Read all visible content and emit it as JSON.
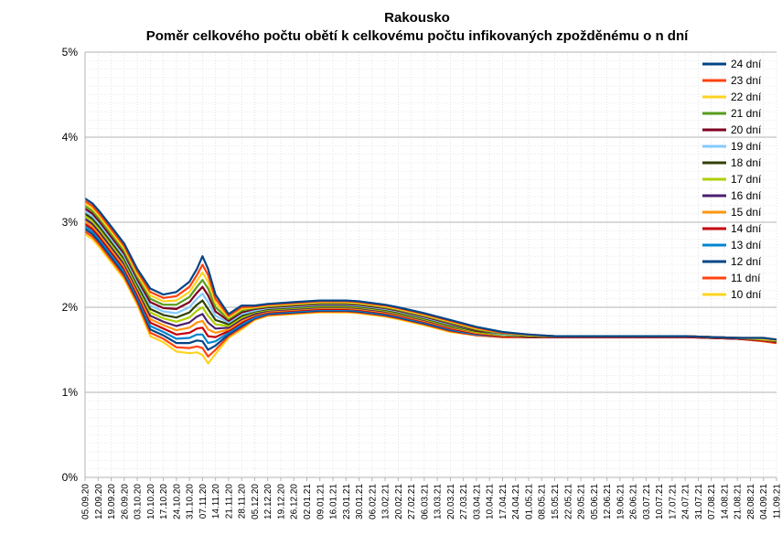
{
  "chart_data": {
    "type": "line",
    "title": "Rakousko",
    "subtitle": "Poměr celkového počtu obětí k celkovému počtu infikovaných zpožděnému o n dní",
    "xlabel": "",
    "ylabel": "",
    "ylim": [
      0,
      5
    ],
    "y_ticks": [
      "0%",
      "1%",
      "2%",
      "3%",
      "4%",
      "5%"
    ],
    "x_tick_labels": [
      "05.09.20",
      "12.09.20",
      "19.09.20",
      "26.09.20",
      "03.10.20",
      "10.10.20",
      "17.10.20",
      "24.10.20",
      "31.10.20",
      "07.11.20",
      "14.11.20",
      "21.11.20",
      "28.11.20",
      "05.12.20",
      "12.12.20",
      "19.12.20",
      "26.12.20",
      "02.01.21",
      "09.01.21",
      "16.01.21",
      "23.01.21",
      "30.01.21",
      "06.02.21",
      "13.02.21",
      "20.02.21",
      "27.02.21",
      "06.03.21",
      "13.03.21",
      "20.03.21",
      "27.03.21",
      "03.04.21",
      "10.04.21",
      "17.04.21",
      "24.04.21",
      "01.05.21",
      "08.05.21",
      "15.05.21",
      "22.05.21",
      "29.05.21",
      "05.06.21",
      "12.06.21",
      "19.06.21",
      "26.06.21",
      "03.07.21",
      "10.07.21",
      "17.07.21",
      "24.07.21",
      "31.07.21",
      "07.08.21",
      "14.08.21",
      "21.08.21",
      "28.08.21",
      "04.09.21",
      "11.09.21"
    ],
    "grid": true,
    "legend_position": "top-right",
    "x_day_index": [
      0,
      4,
      8,
      14,
      21,
      28,
      35,
      42,
      49,
      56,
      60,
      63,
      66,
      70,
      77,
      84,
      91,
      98,
      112,
      126,
      140,
      147,
      154,
      161,
      168,
      182,
      196,
      210,
      224,
      238,
      252,
      266,
      280,
      294,
      308,
      322,
      336,
      350,
      364,
      371
    ],
    "series": [
      {
        "name": "24 dní",
        "color": "#004586",
        "values": [
          3.28,
          3.22,
          3.12,
          2.95,
          2.75,
          2.45,
          2.22,
          2.15,
          2.18,
          2.3,
          2.45,
          2.6,
          2.45,
          2.15,
          1.92,
          2.02,
          2.02,
          2.04,
          2.06,
          2.08,
          2.08,
          2.07,
          2.05,
          2.03,
          2.0,
          1.93,
          1.85,
          1.77,
          1.71,
          1.68,
          1.66,
          1.66,
          1.66,
          1.66,
          1.66,
          1.66,
          1.65,
          1.64,
          1.64,
          1.62
        ]
      },
      {
        "name": "23 dní",
        "color": "#ff420e",
        "values": [
          3.25,
          3.19,
          3.09,
          2.92,
          2.72,
          2.42,
          2.18,
          2.11,
          2.13,
          2.24,
          2.38,
          2.5,
          2.38,
          2.1,
          1.9,
          2.0,
          2.01,
          2.03,
          2.05,
          2.07,
          2.07,
          2.06,
          2.04,
          2.02,
          1.99,
          1.92,
          1.84,
          1.76,
          1.7,
          1.68,
          1.66,
          1.66,
          1.66,
          1.66,
          1.66,
          1.66,
          1.65,
          1.64,
          1.64,
          1.62
        ]
      },
      {
        "name": "22 dní",
        "color": "#ffd320",
        "values": [
          3.22,
          3.16,
          3.06,
          2.89,
          2.69,
          2.39,
          2.14,
          2.07,
          2.08,
          2.18,
          2.31,
          2.41,
          2.3,
          2.05,
          1.88,
          1.98,
          2.0,
          2.02,
          2.04,
          2.06,
          2.06,
          2.05,
          2.03,
          2.01,
          1.98,
          1.91,
          1.83,
          1.75,
          1.7,
          1.67,
          1.66,
          1.66,
          1.66,
          1.66,
          1.66,
          1.66,
          1.65,
          1.64,
          1.63,
          1.61
        ]
      },
      {
        "name": "21 dní",
        "color": "#579d1c",
        "values": [
          3.19,
          3.13,
          3.03,
          2.86,
          2.66,
          2.36,
          2.1,
          2.03,
          2.03,
          2.12,
          2.24,
          2.32,
          2.22,
          2.0,
          1.86,
          1.96,
          1.99,
          2.01,
          2.03,
          2.05,
          2.05,
          2.04,
          2.02,
          2.0,
          1.97,
          1.9,
          1.82,
          1.74,
          1.69,
          1.67,
          1.66,
          1.66,
          1.66,
          1.66,
          1.66,
          1.66,
          1.65,
          1.64,
          1.63,
          1.61
        ]
      },
      {
        "name": "20 dní",
        "color": "#7e0021",
        "values": [
          3.16,
          3.1,
          3.0,
          2.83,
          2.63,
          2.33,
          2.06,
          1.99,
          1.98,
          2.06,
          2.17,
          2.24,
          2.14,
          1.95,
          1.84,
          1.94,
          1.98,
          2.0,
          2.02,
          2.04,
          2.04,
          2.03,
          2.01,
          1.99,
          1.96,
          1.89,
          1.81,
          1.73,
          1.69,
          1.67,
          1.66,
          1.66,
          1.66,
          1.66,
          1.66,
          1.66,
          1.65,
          1.64,
          1.63,
          1.61
        ]
      },
      {
        "name": "19 dní",
        "color": "#83caff",
        "values": [
          3.13,
          3.07,
          2.97,
          2.8,
          2.6,
          2.3,
          2.02,
          1.95,
          1.93,
          2.0,
          2.1,
          2.16,
          2.06,
          1.9,
          1.82,
          1.92,
          1.96,
          1.99,
          2.01,
          2.03,
          2.03,
          2.02,
          2.0,
          1.98,
          1.95,
          1.88,
          1.8,
          1.73,
          1.68,
          1.67,
          1.66,
          1.66,
          1.66,
          1.66,
          1.66,
          1.66,
          1.65,
          1.64,
          1.63,
          1.61
        ]
      },
      {
        "name": "18 dní",
        "color": "#314004",
        "values": [
          3.1,
          3.04,
          2.94,
          2.77,
          2.57,
          2.27,
          1.98,
          1.91,
          1.88,
          1.94,
          2.03,
          2.08,
          1.98,
          1.85,
          1.8,
          1.9,
          1.95,
          1.98,
          2.0,
          2.02,
          2.02,
          2.01,
          1.99,
          1.97,
          1.94,
          1.87,
          1.79,
          1.72,
          1.68,
          1.66,
          1.66,
          1.66,
          1.66,
          1.66,
          1.66,
          1.66,
          1.65,
          1.64,
          1.63,
          1.6
        ]
      },
      {
        "name": "17 dní",
        "color": "#aecf00",
        "values": [
          3.07,
          3.01,
          2.91,
          2.74,
          2.54,
          2.24,
          1.94,
          1.87,
          1.83,
          1.88,
          1.96,
          2.0,
          1.9,
          1.8,
          1.78,
          1.88,
          1.94,
          1.97,
          1.99,
          2.01,
          2.01,
          2.0,
          1.98,
          1.96,
          1.93,
          1.86,
          1.78,
          1.71,
          1.67,
          1.66,
          1.66,
          1.66,
          1.66,
          1.66,
          1.66,
          1.66,
          1.65,
          1.64,
          1.62,
          1.6
        ]
      },
      {
        "name": "16 dní",
        "color": "#4b1f6f",
        "values": [
          3.04,
          2.98,
          2.88,
          2.71,
          2.51,
          2.21,
          1.9,
          1.83,
          1.78,
          1.82,
          1.89,
          1.92,
          1.82,
          1.75,
          1.76,
          1.86,
          1.92,
          1.96,
          1.98,
          2.0,
          2.0,
          1.99,
          1.97,
          1.95,
          1.92,
          1.85,
          1.77,
          1.71,
          1.67,
          1.66,
          1.66,
          1.66,
          1.66,
          1.66,
          1.66,
          1.66,
          1.65,
          1.64,
          1.62,
          1.6
        ]
      },
      {
        "name": "15 dní",
        "color": "#ff950e",
        "values": [
          3.01,
          2.95,
          2.85,
          2.68,
          2.48,
          2.18,
          1.86,
          1.79,
          1.73,
          1.76,
          1.82,
          1.84,
          1.74,
          1.7,
          1.74,
          1.84,
          1.91,
          1.95,
          1.97,
          1.99,
          1.99,
          1.98,
          1.96,
          1.94,
          1.91,
          1.84,
          1.76,
          1.7,
          1.67,
          1.66,
          1.66,
          1.66,
          1.66,
          1.66,
          1.66,
          1.66,
          1.65,
          1.64,
          1.62,
          1.6
        ]
      },
      {
        "name": "14 dní",
        "color": "#c5000b",
        "values": [
          2.98,
          2.92,
          2.82,
          2.65,
          2.45,
          2.15,
          1.82,
          1.75,
          1.68,
          1.7,
          1.75,
          1.76,
          1.66,
          1.65,
          1.72,
          1.82,
          1.9,
          1.94,
          1.96,
          1.98,
          1.98,
          1.97,
          1.95,
          1.93,
          1.9,
          1.83,
          1.75,
          1.69,
          1.66,
          1.65,
          1.65,
          1.65,
          1.65,
          1.65,
          1.65,
          1.65,
          1.64,
          1.63,
          1.61,
          1.59
        ]
      },
      {
        "name": "13 dní",
        "color": "#0084d1",
        "values": [
          2.95,
          2.89,
          2.79,
          2.62,
          2.42,
          2.12,
          1.78,
          1.71,
          1.63,
          1.64,
          1.68,
          1.68,
          1.58,
          1.6,
          1.7,
          1.8,
          1.88,
          1.93,
          1.95,
          1.97,
          1.97,
          1.96,
          1.94,
          1.92,
          1.89,
          1.82,
          1.74,
          1.68,
          1.66,
          1.65,
          1.65,
          1.65,
          1.65,
          1.65,
          1.65,
          1.65,
          1.64,
          1.63,
          1.61,
          1.59
        ]
      },
      {
        "name": "12 dní",
        "color": "#004586",
        "values": [
          2.92,
          2.86,
          2.76,
          2.59,
          2.39,
          2.09,
          1.74,
          1.67,
          1.58,
          1.58,
          1.61,
          1.6,
          1.5,
          1.55,
          1.68,
          1.78,
          1.87,
          1.92,
          1.94,
          1.96,
          1.96,
          1.95,
          1.93,
          1.91,
          1.88,
          1.81,
          1.73,
          1.68,
          1.66,
          1.65,
          1.65,
          1.65,
          1.65,
          1.65,
          1.65,
          1.65,
          1.64,
          1.63,
          1.61,
          1.59
        ]
      },
      {
        "name": "11 dní",
        "color": "#ff420e",
        "values": [
          2.89,
          2.83,
          2.73,
          2.56,
          2.36,
          2.06,
          1.7,
          1.63,
          1.53,
          1.52,
          1.54,
          1.52,
          1.42,
          1.5,
          1.66,
          1.76,
          1.86,
          1.91,
          1.93,
          1.95,
          1.95,
          1.94,
          1.92,
          1.9,
          1.87,
          1.8,
          1.72,
          1.67,
          1.65,
          1.65,
          1.65,
          1.65,
          1.65,
          1.65,
          1.65,
          1.65,
          1.64,
          1.63,
          1.6,
          1.58
        ]
      },
      {
        "name": "10 dní",
        "color": "#ffd320",
        "values": [
          2.86,
          2.8,
          2.7,
          2.53,
          2.33,
          2.03,
          1.66,
          1.59,
          1.48,
          1.46,
          1.47,
          1.44,
          1.34,
          1.45,
          1.64,
          1.74,
          1.85,
          1.9,
          1.92,
          1.94,
          1.94,
          1.93,
          1.91,
          1.89,
          1.86,
          1.79,
          1.71,
          1.67,
          1.65,
          1.65,
          1.65,
          1.65,
          1.65,
          1.65,
          1.65,
          1.65,
          1.64,
          1.63,
          1.6,
          1.58
        ]
      }
    ]
  }
}
